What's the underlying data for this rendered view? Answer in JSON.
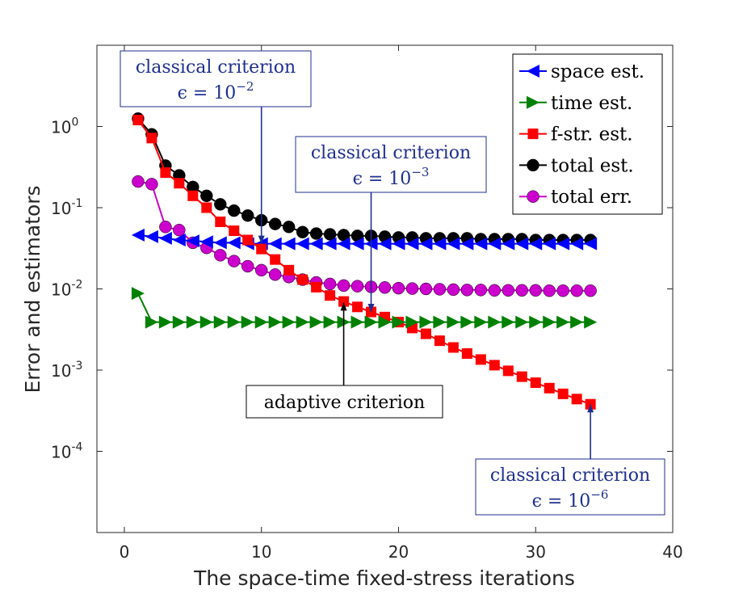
{
  "chart_data": {
    "type": "line",
    "title": "",
    "xlabel": "The space-time fixed-stress iterations",
    "ylabel": "Error and estimators",
    "xlim": [
      -2,
      40
    ],
    "ylim_log10": [
      -5,
      1
    ],
    "y_scale": "log",
    "x_ticks": [
      0,
      10,
      20,
      30,
      40
    ],
    "x_tick_labels": [
      "0",
      "10",
      "20",
      "30",
      "40"
    ],
    "y_ticks_log10": [
      0,
      -1,
      -2,
      -3,
      -4
    ],
    "y_tick_mantissa": "10",
    "y_tick_exponents": [
      "0",
      "-1",
      "-2",
      "-3",
      "-4"
    ],
    "grid": false,
    "legend_position": "top-right",
    "x": [
      1,
      2,
      3,
      4,
      5,
      6,
      7,
      8,
      9,
      10,
      11,
      12,
      13,
      14,
      15,
      16,
      17,
      18,
      19,
      20,
      21,
      22,
      23,
      24,
      25,
      26,
      27,
      28,
      29,
      30,
      31,
      32,
      33,
      34
    ],
    "series": [
      {
        "name": "space est.",
        "color": "#0000ff",
        "marker": "triangle-left",
        "values": [
          0.046,
          0.044,
          0.042,
          0.04,
          0.039,
          0.038,
          0.037,
          0.037,
          0.036,
          0.036,
          0.036,
          0.036,
          0.036,
          0.036,
          0.036,
          0.036,
          0.036,
          0.036,
          0.036,
          0.036,
          0.036,
          0.036,
          0.036,
          0.036,
          0.036,
          0.036,
          0.036,
          0.036,
          0.036,
          0.036,
          0.036,
          0.036,
          0.036,
          0.036
        ]
      },
      {
        "name": "time est.",
        "color": "#008000",
        "marker": "triangle-right",
        "values": [
          0.0088,
          0.0039,
          0.0039,
          0.0039,
          0.0039,
          0.0039,
          0.0039,
          0.0039,
          0.0039,
          0.0039,
          0.0039,
          0.0039,
          0.0039,
          0.0039,
          0.0039,
          0.0039,
          0.0039,
          0.0039,
          0.0039,
          0.0039,
          0.0039,
          0.0039,
          0.0039,
          0.0039,
          0.0039,
          0.0039,
          0.0039,
          0.0039,
          0.0039,
          0.0039,
          0.0039,
          0.0039,
          0.0039,
          0.0039
        ]
      },
      {
        "name": "f-str. est.",
        "color": "#ff0000",
        "marker": "square",
        "values": [
          1.2,
          0.72,
          0.27,
          0.2,
          0.14,
          0.1,
          0.067,
          0.052,
          0.04,
          0.031,
          0.023,
          0.017,
          0.013,
          0.0105,
          0.0083,
          0.007,
          0.006,
          0.0052,
          0.0045,
          0.0039,
          0.0033,
          0.0028,
          0.0023,
          0.0019,
          0.0016,
          0.00135,
          0.00115,
          0.00098,
          0.00083,
          0.0007,
          0.0006,
          0.00051,
          0.00044,
          0.00038
        ]
      },
      {
        "name": "total est.",
        "color": "#000000",
        "marker": "circle",
        "values": [
          1.25,
          0.8,
          0.33,
          0.25,
          0.18,
          0.14,
          0.11,
          0.092,
          0.08,
          0.07,
          0.063,
          0.058,
          0.05,
          0.048,
          0.047,
          0.046,
          0.045,
          0.045,
          0.044,
          0.043,
          0.043,
          0.042,
          0.042,
          0.042,
          0.042,
          0.041,
          0.041,
          0.041,
          0.041,
          0.04,
          0.04,
          0.04,
          0.04,
          0.04
        ]
      },
      {
        "name": "total err.",
        "color": "#cc00cc",
        "marker": "circle",
        "values": [
          0.21,
          0.195,
          0.058,
          0.053,
          0.037,
          0.032,
          0.026,
          0.022,
          0.019,
          0.017,
          0.015,
          0.014,
          0.013,
          0.012,
          0.0115,
          0.011,
          0.0108,
          0.0106,
          0.0104,
          0.0102,
          0.0101,
          0.01,
          0.0099,
          0.0098,
          0.0097,
          0.0097,
          0.0096,
          0.0096,
          0.0096,
          0.0096,
          0.0095,
          0.0095,
          0.0095,
          0.0095
        ]
      }
    ],
    "annotations": [
      {
        "id": "classical-1e-2",
        "line1": "classical criterion",
        "line2_prefix": "ϵ = 10",
        "exponent": "−2",
        "color": "#1f2f8f",
        "arrow_to": {
          "x": 10,
          "y": 0.036
        }
      },
      {
        "id": "classical-1e-3",
        "line1": "classical criterion",
        "line2_prefix": "ϵ = 10",
        "exponent": "−3",
        "color": "#1f2f8f",
        "arrow_to": {
          "x": 18,
          "y": 0.0052
        }
      },
      {
        "id": "adaptive",
        "line1": "adaptive criterion",
        "line2_prefix": "",
        "exponent": "",
        "color": "#000000",
        "arrow_to": {
          "x": 16,
          "y": 0.0068
        }
      },
      {
        "id": "classical-1e-6",
        "line1": "classical criterion",
        "line2_prefix": "ϵ = 10",
        "exponent": "−6",
        "color": "#1f2f8f",
        "arrow_to": {
          "x": 34,
          "y": 0.00038
        }
      }
    ]
  }
}
